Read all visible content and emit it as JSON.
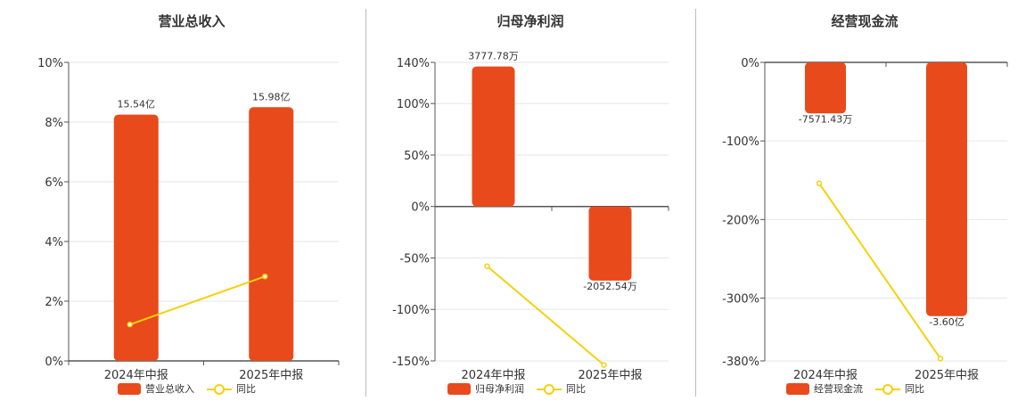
{
  "colors": {
    "bar": "#e84a1c",
    "line": "#f5d10c",
    "grid": "#e6e6e6",
    "axis": "#555555"
  },
  "chart_data": [
    {
      "type": "bar",
      "title": "营业总收入",
      "categories": [
        "2024年中报",
        "2025年中报"
      ],
      "ylim": [
        0,
        10
      ],
      "yticks": [
        "0%",
        "2%",
        "4%",
        "6%",
        "8%",
        "10%"
      ],
      "yticks_values": [
        0,
        2,
        4,
        6,
        8,
        10
      ],
      "series": [
        {
          "name": "营业总收入",
          "kind": "bar",
          "values": [
            8.25,
            8.5
          ],
          "labels": [
            "15.54亿",
            "15.98亿"
          ]
        },
        {
          "name": "同比",
          "kind": "line",
          "values": [
            1.22,
            2.83
          ]
        }
      ],
      "grid": true,
      "legend": "bottom"
    },
    {
      "type": "bar",
      "title": "归母净利润",
      "categories": [
        "2024年中报",
        "2025年中报"
      ],
      "ylim": [
        -150,
        140
      ],
      "yticks": [
        "-150%",
        "-100%",
        "-50%",
        "0%",
        "50%",
        "100%",
        "140%"
      ],
      "yticks_values": [
        -150,
        -100,
        -50,
        0,
        50,
        100,
        140
      ],
      "series": [
        {
          "name": "归母净利润",
          "kind": "bar",
          "values": [
            136,
            -72
          ],
          "labels": [
            "3777.78万",
            "-2052.54万"
          ]
        },
        {
          "name": "同比",
          "kind": "line",
          "values": [
            -58,
            -154
          ]
        }
      ],
      "grid": true,
      "legend": "bottom"
    },
    {
      "type": "bar",
      "title": "经营现金流",
      "categories": [
        "2024年中报",
        "2025年中报"
      ],
      "ylim": [
        -380,
        0
      ],
      "yticks": [
        "-380%",
        "-300%",
        "-200%",
        "-100%",
        "0%"
      ],
      "yticks_values": [
        -380,
        -300,
        -200,
        -100,
        0
      ],
      "series": [
        {
          "name": "经营现金流",
          "kind": "bar",
          "values": [
            -65,
            -323
          ],
          "labels": [
            "-7571.43万",
            "-3.60亿"
          ]
        },
        {
          "name": "同比",
          "kind": "line",
          "values": [
            -154,
            -377
          ]
        }
      ],
      "grid": true,
      "legend": "bottom"
    }
  ]
}
